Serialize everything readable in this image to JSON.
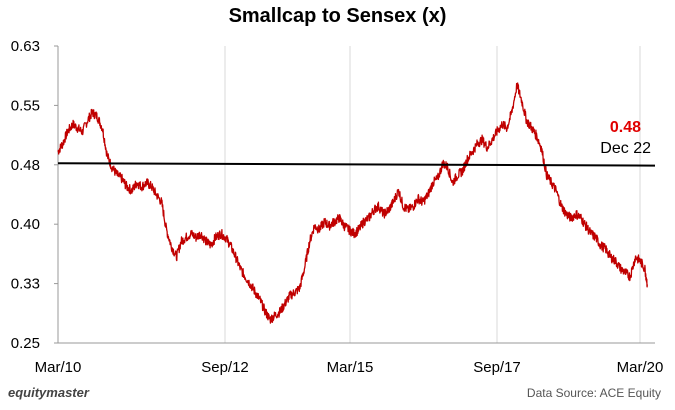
{
  "chart_data": {
    "type": "line",
    "title": "Smallcap to Sensex (x)",
    "xlabel": "",
    "ylabel": "",
    "x_tick_labels": [
      "Mar/10",
      "Sep/12",
      "Mar/15",
      "Sep/17",
      "Mar/20"
    ],
    "y_tick_labels": [
      "0.25",
      "0.33",
      "0.40",
      "0.48",
      "0.55",
      "0.63"
    ],
    "ylim": [
      0.25,
      0.63
    ],
    "grid": "vertical",
    "series": [
      {
        "color": "#c00000",
        "points": [
          [
            2010.17,
            0.495
          ],
          [
            2010.25,
            0.505
          ],
          [
            2010.33,
            0.52
          ],
          [
            2010.42,
            0.53
          ],
          [
            2010.5,
            0.525
          ],
          [
            2010.58,
            0.52
          ],
          [
            2010.67,
            0.535
          ],
          [
            2010.75,
            0.545
          ],
          [
            2010.83,
            0.54
          ],
          [
            2010.92,
            0.525
          ],
          [
            2011.0,
            0.49
          ],
          [
            2011.08,
            0.475
          ],
          [
            2011.17,
            0.465
          ],
          [
            2011.25,
            0.46
          ],
          [
            2011.33,
            0.45
          ],
          [
            2011.42,
            0.445
          ],
          [
            2011.5,
            0.455
          ],
          [
            2011.58,
            0.45
          ],
          [
            2011.67,
            0.455
          ],
          [
            2011.75,
            0.45
          ],
          [
            2011.83,
            0.44
          ],
          [
            2011.92,
            0.43
          ],
          [
            2012.0,
            0.395
          ],
          [
            2012.08,
            0.375
          ],
          [
            2012.17,
            0.36
          ],
          [
            2012.25,
            0.38
          ],
          [
            2012.33,
            0.385
          ],
          [
            2012.42,
            0.39
          ],
          [
            2012.5,
            0.385
          ],
          [
            2012.58,
            0.39
          ],
          [
            2012.67,
            0.38
          ],
          [
            2012.75,
            0.375
          ],
          [
            2012.83,
            0.385
          ],
          [
            2012.92,
            0.39
          ],
          [
            2013.0,
            0.385
          ],
          [
            2013.08,
            0.375
          ],
          [
            2013.17,
            0.36
          ],
          [
            2013.25,
            0.345
          ],
          [
            2013.33,
            0.335
          ],
          [
            2013.42,
            0.325
          ],
          [
            2013.5,
            0.315
          ],
          [
            2013.58,
            0.305
          ],
          [
            2013.67,
            0.29
          ],
          [
            2013.75,
            0.28
          ],
          [
            2013.83,
            0.285
          ],
          [
            2013.92,
            0.29
          ],
          [
            2014.0,
            0.3
          ],
          [
            2014.08,
            0.31
          ],
          [
            2014.17,
            0.315
          ],
          [
            2014.25,
            0.32
          ],
          [
            2014.33,
            0.345
          ],
          [
            2014.42,
            0.38
          ],
          [
            2014.5,
            0.4
          ],
          [
            2014.58,
            0.395
          ],
          [
            2014.67,
            0.405
          ],
          [
            2014.75,
            0.4
          ],
          [
            2014.83,
            0.405
          ],
          [
            2014.92,
            0.41
          ],
          [
            2015.0,
            0.4
          ],
          [
            2015.08,
            0.395
          ],
          [
            2015.17,
            0.39
          ],
          [
            2015.25,
            0.395
          ],
          [
            2015.33,
            0.405
          ],
          [
            2015.42,
            0.41
          ],
          [
            2015.5,
            0.42
          ],
          [
            2015.58,
            0.425
          ],
          [
            2015.67,
            0.415
          ],
          [
            2015.75,
            0.42
          ],
          [
            2015.83,
            0.43
          ],
          [
            2015.92,
            0.445
          ],
          [
            2016.0,
            0.425
          ],
          [
            2016.08,
            0.42
          ],
          [
            2016.17,
            0.425
          ],
          [
            2016.25,
            0.435
          ],
          [
            2016.33,
            0.43
          ],
          [
            2016.42,
            0.44
          ],
          [
            2016.5,
            0.455
          ],
          [
            2016.58,
            0.46
          ],
          [
            2016.67,
            0.48
          ],
          [
            2016.75,
            0.475
          ],
          [
            2016.83,
            0.455
          ],
          [
            2016.92,
            0.465
          ],
          [
            2017.0,
            0.47
          ],
          [
            2017.08,
            0.485
          ],
          [
            2017.17,
            0.495
          ],
          [
            2017.25,
            0.505
          ],
          [
            2017.33,
            0.51
          ],
          [
            2017.42,
            0.5
          ],
          [
            2017.5,
            0.51
          ],
          [
            2017.58,
            0.52
          ],
          [
            2017.67,
            0.53
          ],
          [
            2017.75,
            0.525
          ],
          [
            2017.83,
            0.545
          ],
          [
            2017.92,
            0.58
          ],
          [
            2018.0,
            0.56
          ],
          [
            2018.08,
            0.535
          ],
          [
            2018.17,
            0.525
          ],
          [
            2018.25,
            0.515
          ],
          [
            2018.33,
            0.5
          ],
          [
            2018.42,
            0.465
          ],
          [
            2018.5,
            0.455
          ],
          [
            2018.58,
            0.445
          ],
          [
            2018.67,
            0.425
          ],
          [
            2018.75,
            0.415
          ],
          [
            2018.83,
            0.41
          ],
          [
            2018.92,
            0.415
          ],
          [
            2019.0,
            0.41
          ],
          [
            2019.08,
            0.4
          ],
          [
            2019.17,
            0.39
          ],
          [
            2019.25,
            0.385
          ],
          [
            2019.33,
            0.375
          ],
          [
            2019.42,
            0.37
          ],
          [
            2019.5,
            0.36
          ],
          [
            2019.58,
            0.355
          ],
          [
            2019.67,
            0.345
          ],
          [
            2019.75,
            0.34
          ],
          [
            2019.83,
            0.335
          ],
          [
            2019.92,
            0.36
          ],
          [
            2020.0,
            0.355
          ],
          [
            2020.08,
            0.345
          ],
          [
            2020.12,
            0.325
          ]
        ]
      },
      {
        "color": "#000000",
        "points": [
          [
            2010.17,
            0.48
          ],
          [
            2020.25,
            0.477
          ]
        ]
      }
    ],
    "annotation": {
      "value": "0.48",
      "value_color": "#e00000",
      "label": "Dec 22"
    }
  },
  "footer": {
    "brand": "equitymaster",
    "source": "Data Source: ACE Equity"
  }
}
